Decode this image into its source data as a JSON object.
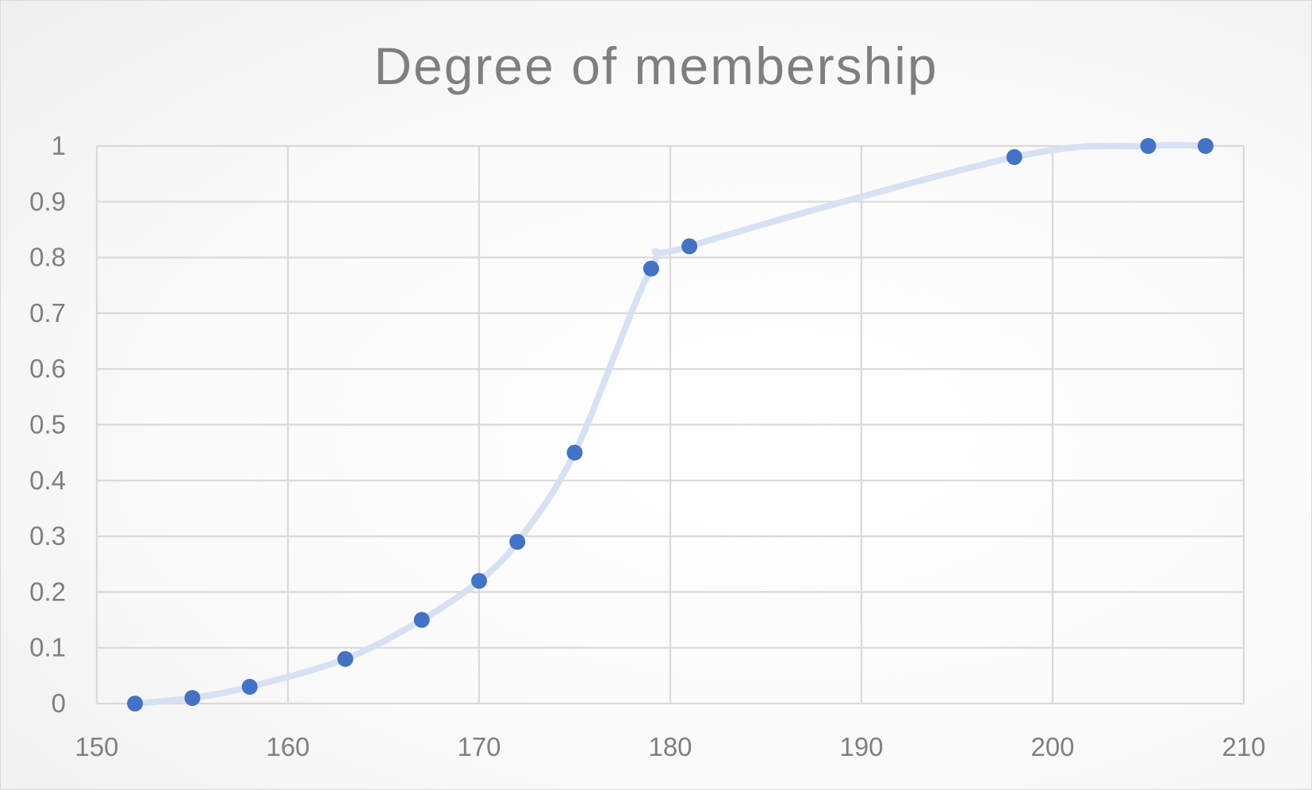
{
  "chart_data": {
    "type": "scatter",
    "title": "Degree of membership",
    "xlabel": "",
    "ylabel": "",
    "xlim": [
      150,
      210
    ],
    "ylim": [
      0,
      1
    ],
    "x_ticks": [
      "150",
      "160",
      "170",
      "180",
      "190",
      "200",
      "210"
    ],
    "y_ticks": [
      "0",
      "0.1",
      "0.2",
      "0.3",
      "0.4",
      "0.5",
      "0.6",
      "0.7",
      "0.8",
      "0.9",
      "1"
    ],
    "grid": true,
    "legend": "none",
    "smoothed_line": true,
    "series": [
      {
        "x": [
          152,
          155,
          158,
          163,
          167,
          170,
          172,
          175,
          179,
          181,
          198,
          205,
          208
        ],
        "y": [
          0,
          0.01,
          0.03,
          0.08,
          0.15,
          0.22,
          0.29,
          0.45,
          0.78,
          0.82,
          0.98,
          1,
          1
        ]
      }
    ],
    "colors": {
      "marker": "#4472c4",
      "line": "#d6e1f3",
      "grid": "#d9d9d9",
      "text": "#7f7f7f"
    }
  }
}
